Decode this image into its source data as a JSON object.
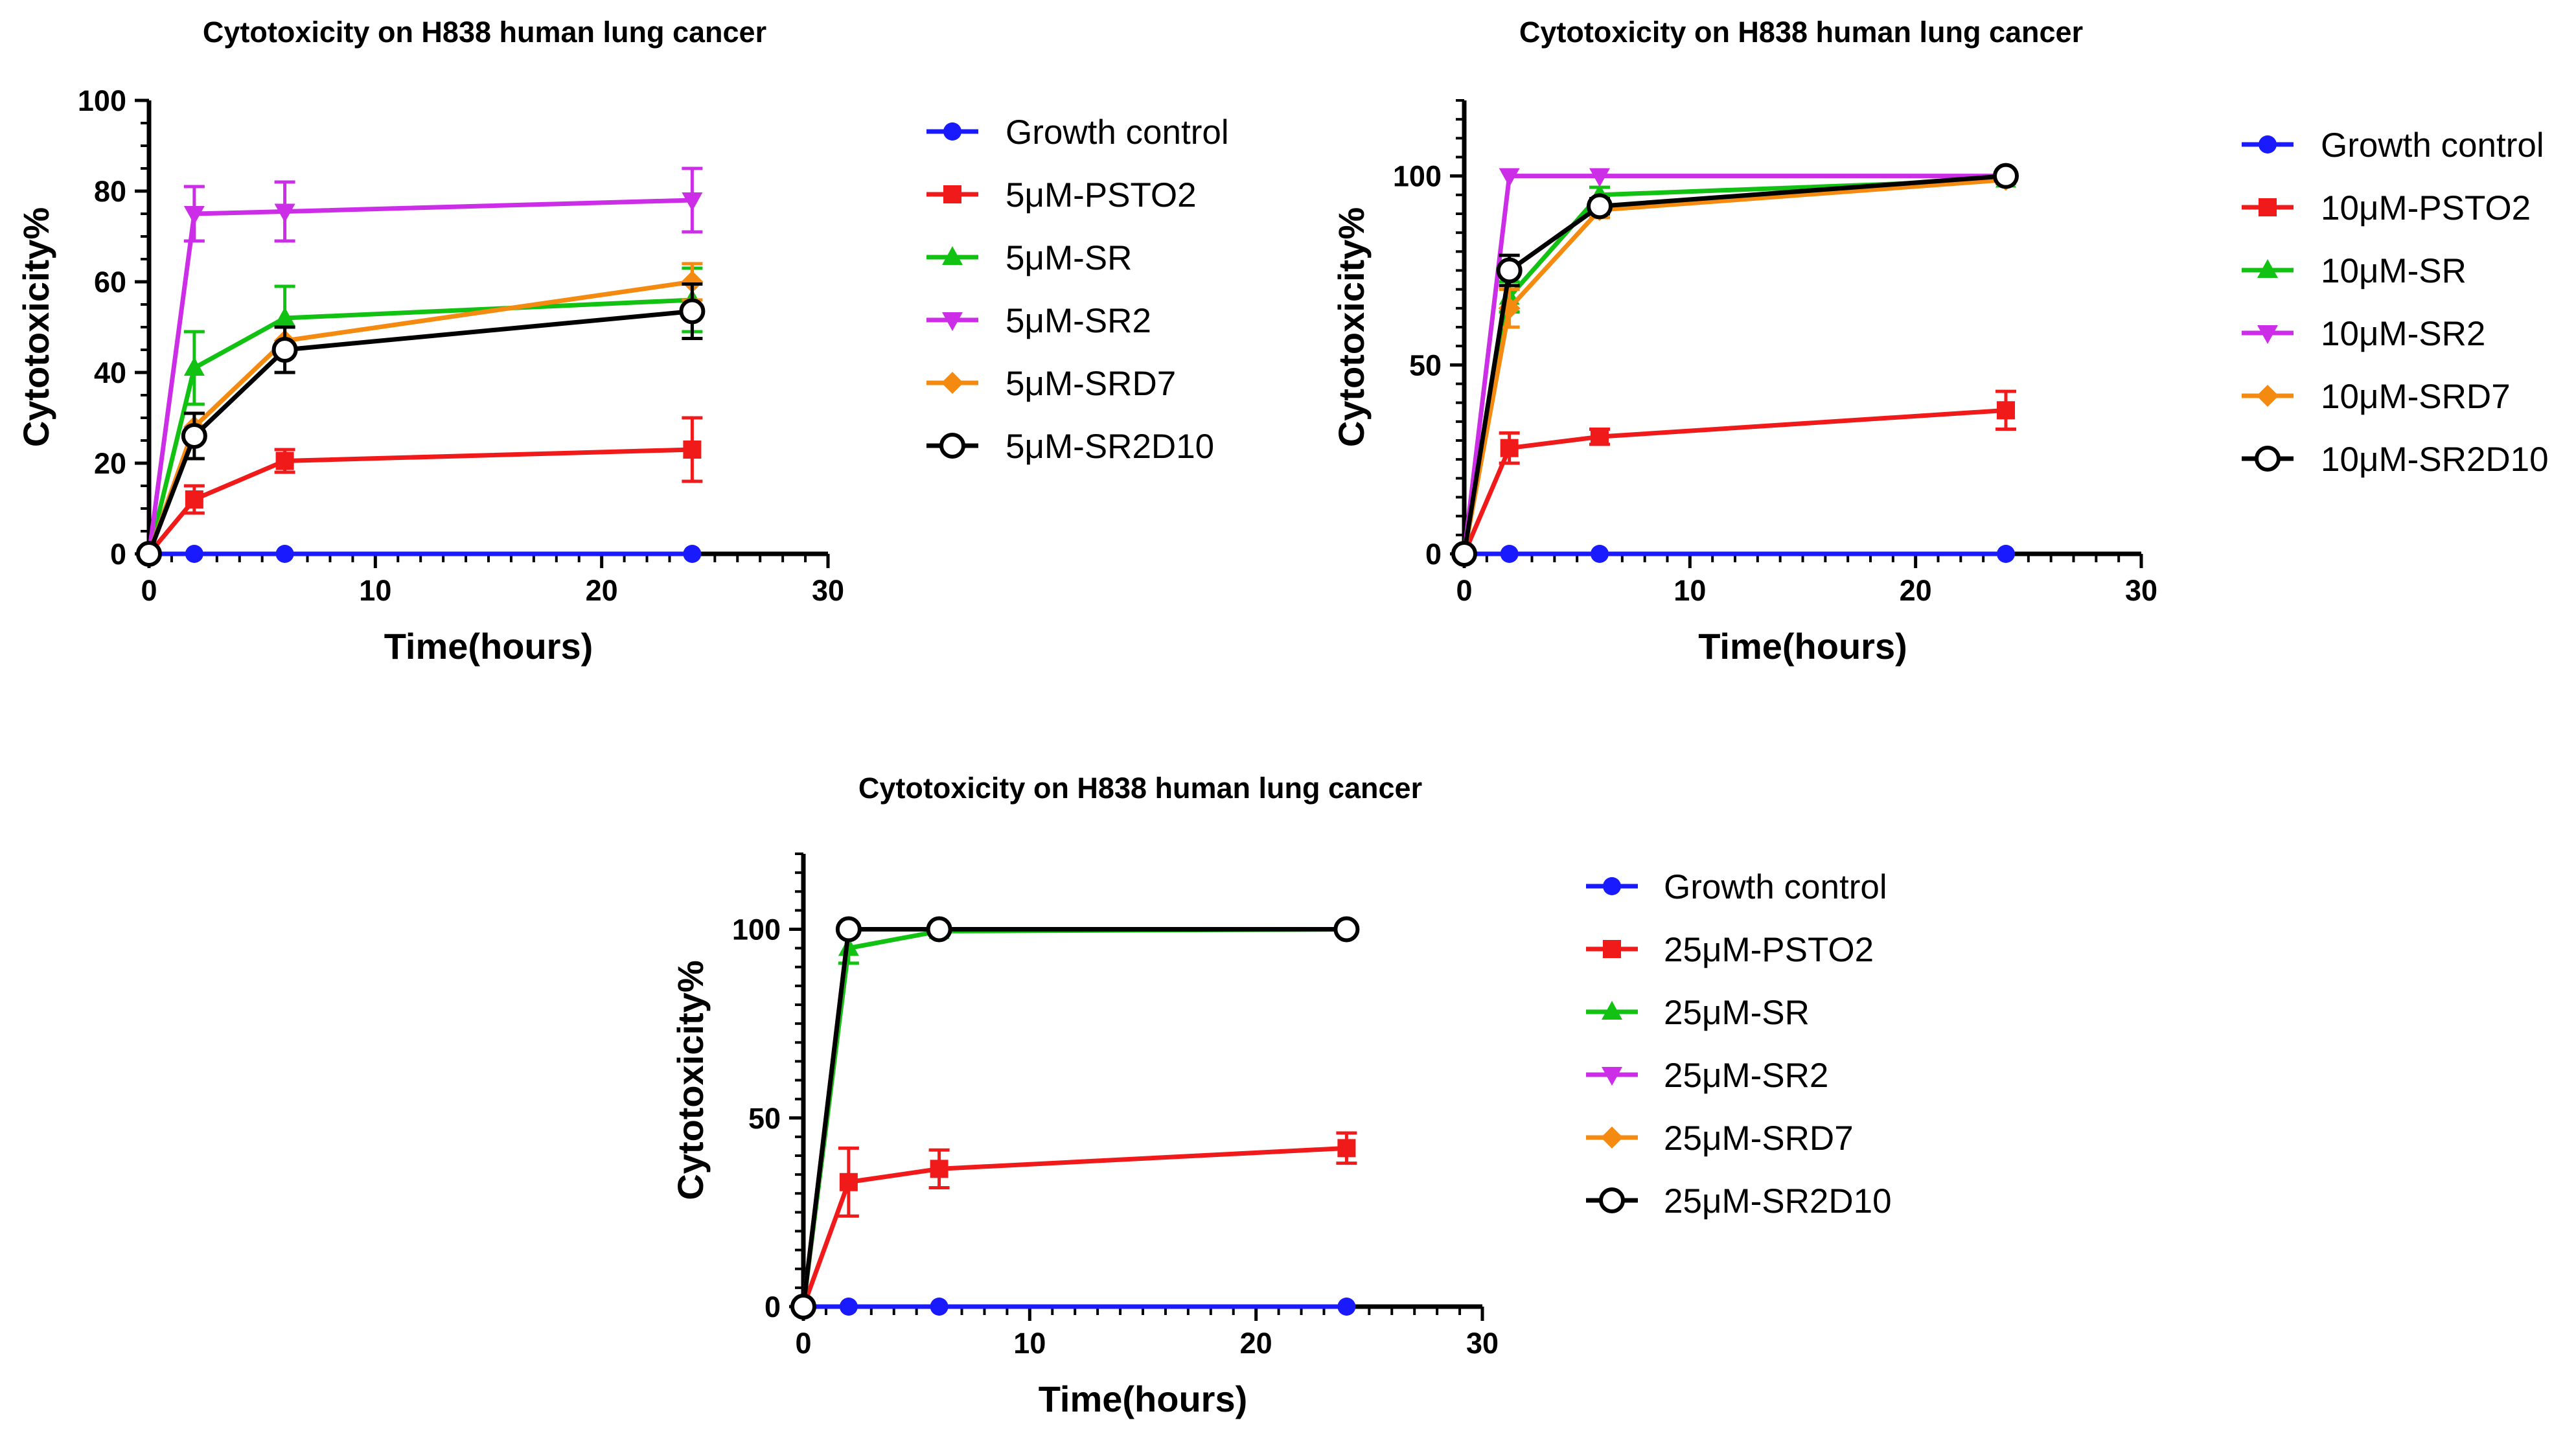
{
  "chart_data": [
    {
      "type": "line",
      "title": "Cytotoxicity on H838 human lung cancer",
      "xlabel": "Time(hours)",
      "ylabel": "Cytotoxicity%",
      "xlim": [
        0,
        30
      ],
      "ylim": [
        0,
        100
      ],
      "xticks": [
        0,
        10,
        20,
        30
      ],
      "yticks": [
        0,
        20,
        40,
        60,
        80,
        100
      ],
      "x": [
        0,
        2,
        6,
        24
      ],
      "series": [
        {
          "name": "Growth control",
          "color": "#1a1aff",
          "marker": "circle",
          "values": [
            0,
            0,
            0,
            0
          ],
          "errors": [
            0,
            0,
            0,
            0
          ]
        },
        {
          "name": "5μM-PSTO2",
          "color": "#f01a1a",
          "marker": "square",
          "values": [
            0,
            12,
            20.5,
            23
          ],
          "errors": [
            0,
            3,
            2.5,
            7
          ]
        },
        {
          "name": "5μM-SR",
          "color": "#12c212",
          "marker": "triangle-up",
          "values": [
            0,
            41,
            52,
            56
          ],
          "errors": [
            0,
            8,
            7,
            7
          ]
        },
        {
          "name": "5μM-SR2",
          "color": "#cc2ee8",
          "marker": "triangle-down",
          "values": [
            0,
            75,
            75.5,
            78
          ],
          "errors": [
            0,
            6,
            6.5,
            7
          ]
        },
        {
          "name": "5μM-SRD7",
          "color": "#f58a10",
          "marker": "diamond",
          "values": [
            0,
            28,
            47,
            60
          ],
          "errors": [
            0,
            3,
            3,
            4
          ]
        },
        {
          "name": "5μM-SR2D10",
          "color": "#000000",
          "marker": "open-circle",
          "values": [
            0,
            26,
            45,
            53.5
          ],
          "errors": [
            0,
            5,
            5,
            6
          ]
        }
      ]
    },
    {
      "type": "line",
      "title": "Cytotoxicity on H838 human lung cancer",
      "xlabel": "Time(hours)",
      "ylabel": "Cytotoxicity%",
      "xlim": [
        0,
        30
      ],
      "ylim": [
        0,
        120
      ],
      "xticks": [
        0,
        10,
        20,
        30
      ],
      "yticks": [
        0,
        50,
        100
      ],
      "x": [
        0,
        2,
        6,
        24
      ],
      "series": [
        {
          "name": "Growth control",
          "color": "#1a1aff",
          "marker": "circle",
          "values": [
            0,
            0,
            0,
            0
          ],
          "errors": [
            0,
            0,
            0,
            0
          ]
        },
        {
          "name": "10μM-PSTO2",
          "color": "#f01a1a",
          "marker": "square",
          "values": [
            0,
            28,
            31,
            38
          ],
          "errors": [
            0,
            4,
            2,
            5
          ]
        },
        {
          "name": "10μM-SR",
          "color": "#12c212",
          "marker": "triangle-up",
          "values": [
            0,
            68,
            95,
            99
          ],
          "errors": [
            0,
            4,
            2,
            1
          ]
        },
        {
          "name": "10μM-SR2",
          "color": "#cc2ee8",
          "marker": "triangle-down",
          "values": [
            0,
            100,
            100,
            100
          ],
          "errors": [
            0,
            0,
            0,
            0
          ]
        },
        {
          "name": "10μM-SRD7",
          "color": "#f58a10",
          "marker": "diamond",
          "values": [
            0,
            65,
            91,
            99
          ],
          "errors": [
            0,
            5,
            2,
            1
          ]
        },
        {
          "name": "10μM-SR2D10",
          "color": "#000000",
          "marker": "open-circle",
          "values": [
            0,
            75,
            92,
            100
          ],
          "errors": [
            0,
            4,
            2,
            1
          ]
        }
      ]
    },
    {
      "type": "line",
      "title": "Cytotoxicity on H838 human lung cancer",
      "xlabel": "Time(hours)",
      "ylabel": "Cytotoxicity%",
      "xlim": [
        0,
        30
      ],
      "ylim": [
        0,
        120
      ],
      "xticks": [
        0,
        10,
        20,
        30
      ],
      "yticks": [
        0,
        50,
        100
      ],
      "x": [
        0,
        2,
        6,
        24
      ],
      "series": [
        {
          "name": "Growth control",
          "color": "#1a1aff",
          "marker": "circle",
          "values": [
            0,
            0,
            0,
            0
          ],
          "errors": [
            0,
            0,
            0,
            0
          ]
        },
        {
          "name": "25μM-PSTO2",
          "color": "#f01a1a",
          "marker": "square",
          "values": [
            0,
            33,
            36.5,
            42
          ],
          "errors": [
            0,
            9,
            5,
            4
          ]
        },
        {
          "name": "25μM-SR",
          "color": "#12c212",
          "marker": "triangle-up",
          "values": [
            0,
            95,
            99.5,
            100
          ],
          "errors": [
            0,
            4,
            1,
            0
          ]
        },
        {
          "name": "25μM-SR2",
          "color": "#cc2ee8",
          "marker": "triangle-down",
          "values": [
            0,
            100,
            100,
            100
          ],
          "errors": [
            0,
            0,
            0,
            0
          ]
        },
        {
          "name": "25μM-SRD7",
          "color": "#f58a10",
          "marker": "diamond",
          "values": [
            0,
            100,
            100,
            100
          ],
          "errors": [
            0,
            0,
            0,
            0
          ]
        },
        {
          "name": "25μM-SR2D10",
          "color": "#000000",
          "marker": "open-circle",
          "values": [
            0,
            100,
            100,
            100
          ],
          "errors": [
            0,
            0,
            0,
            0
          ]
        }
      ]
    }
  ]
}
